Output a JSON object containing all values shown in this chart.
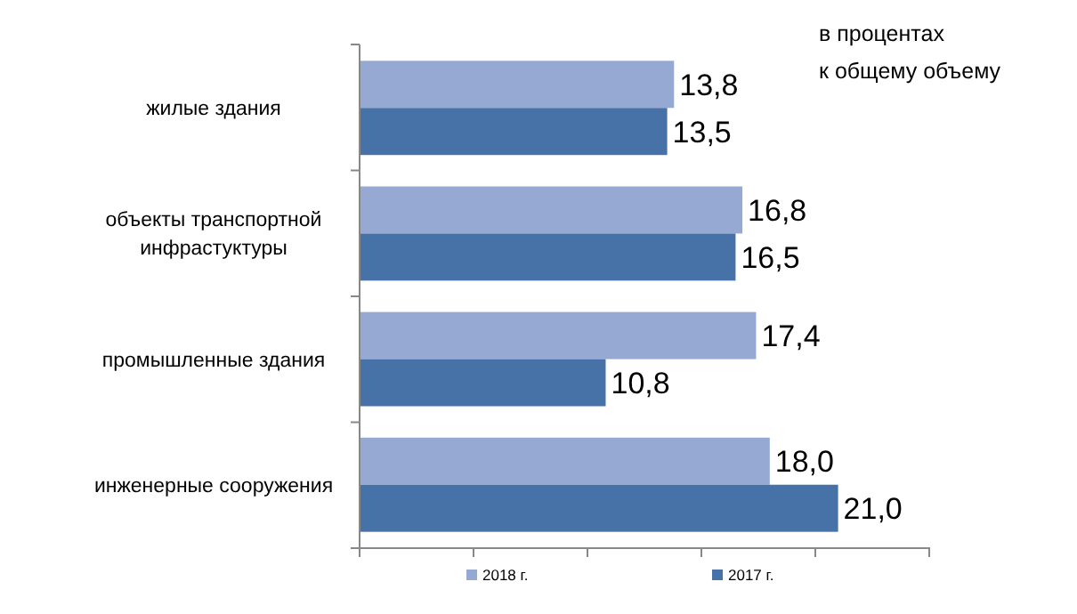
{
  "chart_data": {
    "type": "bar",
    "orientation": "horizontal",
    "categories": [
      "жилые здания",
      "объекты транспортной инфрастуктуры",
      "промышленные  здания",
      "инженерные сооружения"
    ],
    "series": [
      {
        "name": "2018 г.",
        "color": "#95a9d3",
        "values": [
          13.8,
          16.8,
          17.4,
          18.0
        ],
        "value_labels": [
          "13,8",
          "16,8",
          "17,4",
          "18,0"
        ]
      },
      {
        "name": "2017 г.",
        "color": "#4772a8",
        "values": [
          13.5,
          16.5,
          10.8,
          21.0
        ],
        "value_labels": [
          "13,5",
          "16,5",
          "10,8",
          "21,0"
        ]
      }
    ],
    "xlim": [
      0,
      25
    ],
    "xticks": [
      {
        "value": 0,
        "label": null
      },
      {
        "value": 5,
        "label": null
      },
      {
        "value": 10,
        "label": null
      },
      {
        "value": 15,
        "label": null
      },
      {
        "value": 20,
        "label": null
      },
      {
        "value": 25,
        "label": null
      }
    ],
    "annotations": [
      "в процентах\nк общему объему"
    ],
    "legend": "bottom",
    "grid": false
  }
}
